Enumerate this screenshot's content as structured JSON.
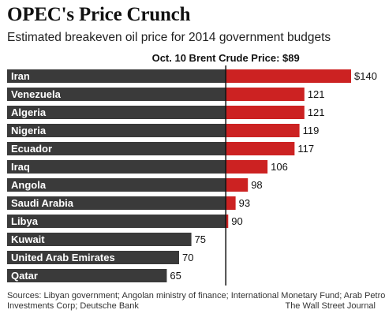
{
  "title": "OPEC's Price Crunch",
  "subtitle": "Estimated breakeven oil price for 2014 government budgets",
  "source": "Sources: Libyan government; Angolan ministry of finance; International Monetary Fund; Arab Petroleum",
  "source_line2": "Investments Corp; Deutsche Bank",
  "credit": "The Wall Street Journal",
  "colors": {
    "below": "#3a3a3a",
    "above": "#cc2222",
    "reference_line": "#111111"
  },
  "chart_data": {
    "type": "bar",
    "orientation": "horizontal",
    "title": "OPEC's Price Crunch",
    "subtitle": "Estimated breakeven oil price for 2014 government budgets",
    "categories": [
      "Iran",
      "Venezuela",
      "Algeria",
      "Nigeria",
      "Ecuador",
      "Iraq",
      "Angola",
      "Saudi Arabia",
      "Libya",
      "Kuwait",
      "United Arab Emirates",
      "Qatar"
    ],
    "values": [
      140,
      121,
      121,
      119,
      117,
      106,
      98,
      93,
      90,
      75,
      70,
      65
    ],
    "value_labels": [
      "$140",
      "121",
      "121",
      "119",
      "117",
      "106",
      "98",
      "93",
      "90",
      "75",
      "70",
      "65"
    ],
    "reference": {
      "value": 89,
      "label": "Oct. 10 Brent Crude Price: $89"
    },
    "xlim": [
      0,
      140
    ],
    "grid": false,
    "legend": "none"
  }
}
